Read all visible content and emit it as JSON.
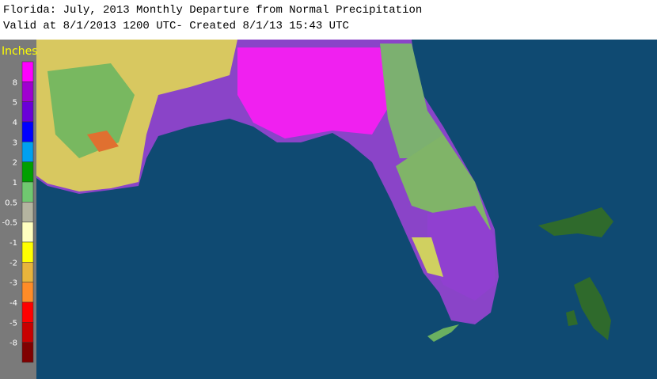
{
  "header": {
    "title": "Florida: July, 2013 Monthly Departure from Normal Precipitation",
    "subtitle": "Valid at 8/1/2013 1200 UTC- Created 8/1/13 15:43 UTC"
  },
  "legend": {
    "title": "Inches",
    "labels": [
      "8",
      "5",
      "4",
      "3",
      "2",
      "1",
      "0.5",
      "-0.5",
      "-1",
      "-2",
      "-3",
      "-4",
      "-5",
      "-8"
    ],
    "colors": [
      "#ff00ff",
      "#a000d0",
      "#6a00d8",
      "#0000ff",
      "#00a0f0",
      "#00a000",
      "#70c870",
      "#b4b4a0",
      "#ffffc0",
      "#ffff00",
      "#e8b43c",
      "#ff8c28",
      "#ff0000",
      "#c80000",
      "#800000"
    ]
  }
}
